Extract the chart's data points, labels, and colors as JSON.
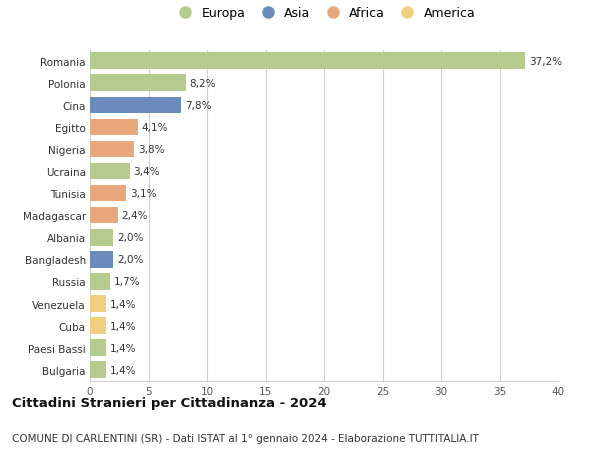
{
  "countries": [
    "Romania",
    "Polonia",
    "Cina",
    "Egitto",
    "Nigeria",
    "Ucraina",
    "Tunisia",
    "Madagascar",
    "Albania",
    "Bangladesh",
    "Russia",
    "Venezuela",
    "Cuba",
    "Paesi Bassi",
    "Bulgaria"
  ],
  "values": [
    37.2,
    8.2,
    7.8,
    4.1,
    3.8,
    3.4,
    3.1,
    2.4,
    2.0,
    2.0,
    1.7,
    1.4,
    1.4,
    1.4,
    1.4
  ],
  "labels": [
    "37,2%",
    "8,2%",
    "7,8%",
    "4,1%",
    "3,8%",
    "3,4%",
    "3,1%",
    "2,4%",
    "2,0%",
    "2,0%",
    "1,7%",
    "1,4%",
    "1,4%",
    "1,4%",
    "1,4%"
  ],
  "continents": [
    "Europa",
    "Europa",
    "Asia",
    "Africa",
    "Africa",
    "Europa",
    "Africa",
    "Africa",
    "Europa",
    "Asia",
    "Europa",
    "America",
    "America",
    "Europa",
    "Europa"
  ],
  "colors": {
    "Europa": "#b5cc8e",
    "Asia": "#6b8cba",
    "Africa": "#e8a87c",
    "America": "#f0d080"
  },
  "legend_order": [
    "Europa",
    "Asia",
    "Africa",
    "America"
  ],
  "xlim": [
    0,
    40
  ],
  "xticks": [
    0,
    5,
    10,
    15,
    20,
    25,
    30,
    35,
    40
  ],
  "title": "Cittadini Stranieri per Cittadinanza - 2024",
  "subtitle": "COMUNE DI CARLENTINI (SR) - Dati ISTAT al 1° gennaio 2024 - Elaborazione TUTTITALIA.IT",
  "bg_color": "#ffffff",
  "grid_color": "#d0d0d0",
  "bar_height": 0.75,
  "label_fontsize": 7.5,
  "tick_fontsize": 7.5,
  "title_fontsize": 9.5,
  "subtitle_fontsize": 7.5
}
